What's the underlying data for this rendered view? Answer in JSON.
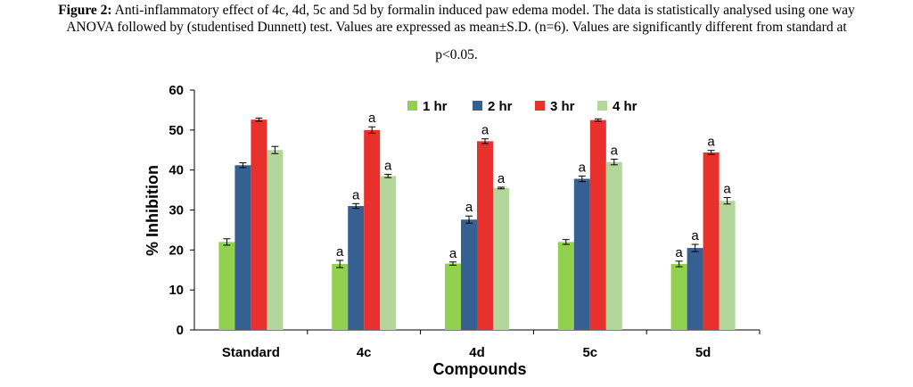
{
  "caption": {
    "label": "Figure 2:",
    "line1": " Anti-inflammatory effect of 4c, 4d, 5c and 5d by formalin induced paw edema model. The data is statistically analysed using one way",
    "line2": "ANOVA followed by (studentised Dunnett) test. Values are expressed as mean±S.D. (n=6). Values are significantly different from standard at",
    "line3": "p<0.05."
  },
  "chart_data": {
    "type": "bar",
    "title": "",
    "xlabel": "Compounds",
    "ylabel": "% Inhibition",
    "ylim": [
      0,
      60
    ],
    "yticks": [
      0,
      10,
      20,
      30,
      40,
      50,
      60
    ],
    "categories": [
      "Standard",
      "4c",
      "4d",
      "5c",
      "5d"
    ],
    "legend_position": "top-right",
    "grid": false,
    "series": [
      {
        "name": "1 hr",
        "color": "#92d050",
        "values": [
          22.0,
          16.5,
          16.6,
          22.0,
          16.5
        ],
        "errors": [
          0.8,
          0.9,
          0.4,
          0.6,
          0.7
        ],
        "sig": [
          "",
          "a",
          "a",
          "",
          "a"
        ]
      },
      {
        "name": "2 hr",
        "color": "#376092",
        "values": [
          41.2,
          31.0,
          27.6,
          37.8,
          20.5
        ],
        "errors": [
          0.6,
          0.6,
          0.9,
          0.7,
          0.9
        ],
        "sig": [
          "",
          "a",
          "a",
          "a",
          "a"
        ]
      },
      {
        "name": "3 hr",
        "color": "#e8302c",
        "values": [
          52.6,
          50.0,
          47.2,
          52.5,
          44.4
        ],
        "errors": [
          0.4,
          0.8,
          0.6,
          0.3,
          0.5
        ],
        "sig": [
          "",
          "a",
          "a",
          "",
          "a"
        ]
      },
      {
        "name": "4 hr",
        "color": "#b3d69b",
        "values": [
          45.0,
          38.5,
          35.5,
          42.0,
          32.3
        ],
        "errors": [
          0.9,
          0.4,
          0.2,
          0.7,
          0.8
        ],
        "sig": [
          "",
          "a",
          "a",
          "a",
          "a"
        ]
      }
    ]
  }
}
